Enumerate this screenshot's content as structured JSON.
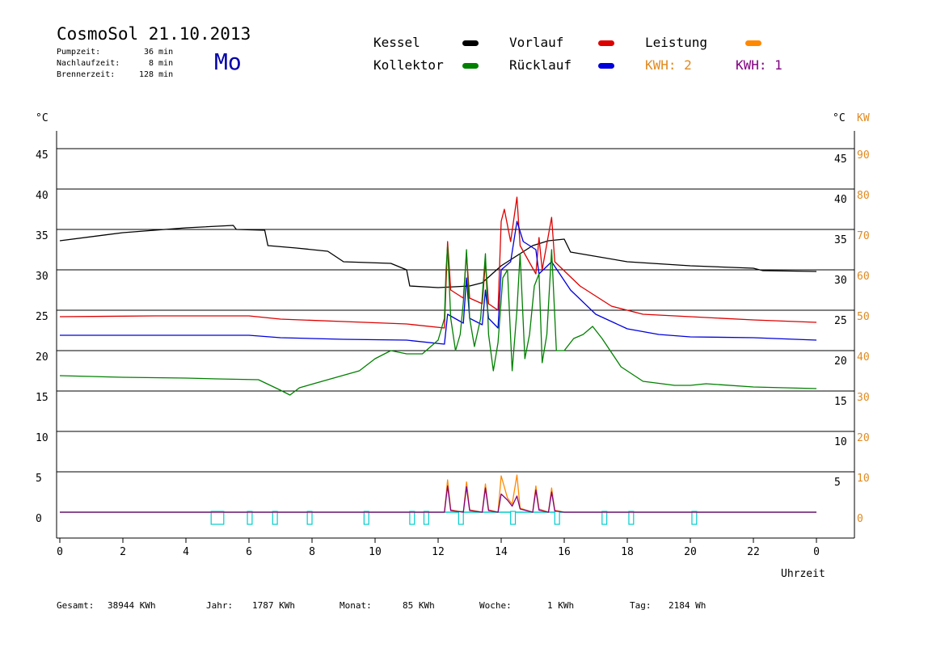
{
  "header": {
    "title": "CosmoSol 21.10.2013",
    "day": "Mo",
    "info": [
      {
        "label": "Pumpzeit:",
        "value": "36 min"
      },
      {
        "label": "Nachlaufzeit:",
        "value": "8 min"
      },
      {
        "label": "Brennerzeit:",
        "value": "128 min"
      }
    ]
  },
  "legend": [
    {
      "name": "Kessel",
      "color": "#000000"
    },
    {
      "name": "Vorlauf",
      "color": "#dd0000"
    },
    {
      "name": "Leistung",
      "color": "#ff8800"
    },
    {
      "name": "Kollektor",
      "color": "#008000"
    },
    {
      "name": "Rücklauf",
      "color": "#0000dd"
    }
  ],
  "kwh": [
    {
      "text": "KWH: 2",
      "color": "#e08a20"
    },
    {
      "text": "KWH: 1",
      "color": "#800080"
    }
  ],
  "axes": {
    "left_unit": "°C",
    "right_unit": "°C",
    "right_unit2": "KW",
    "x_label": "Uhrzeit",
    "x_ticks": [
      "0",
      "2",
      "4",
      "6",
      "8",
      "10",
      "12",
      "14",
      "16",
      "18",
      "20",
      "22",
      "0"
    ],
    "left_ticks": [
      "45",
      "40",
      "35",
      "30",
      "25",
      "20",
      "15",
      "10",
      "5",
      "0"
    ],
    "right_ticks": [
      "45",
      "40",
      "35",
      "30",
      "25",
      "20",
      "15",
      "10",
      "5"
    ],
    "kw_ticks": [
      "90",
      "80",
      "70",
      "60",
      "50",
      "40",
      "30",
      "20",
      "10",
      "0"
    ]
  },
  "totals": [
    {
      "label": "Gesamt:",
      "value": "38944 KWh"
    },
    {
      "label": "Jahr:",
      "value": "1787 KWh"
    },
    {
      "label": "Monat:",
      "value": "85 KWh"
    },
    {
      "label": "Woche:",
      "value": "1 KWh"
    },
    {
      "label": "Tag:",
      "value": "2184 Wh"
    }
  ],
  "chart_data": {
    "type": "line",
    "xlabel": "Uhrzeit",
    "ylabel": "°C",
    "xlim": [
      0,
      24
    ],
    "ylim": [
      0,
      45
    ],
    "y2label": "KW",
    "y2lim": [
      0,
      90
    ],
    "grid": true,
    "series": [
      {
        "name": "Kessel",
        "color": "#000000",
        "points": [
          [
            0,
            33.6
          ],
          [
            2,
            34.6
          ],
          [
            4,
            35.2
          ],
          [
            5.5,
            35.5
          ],
          [
            5.6,
            35.0
          ],
          [
            6.5,
            34.9
          ],
          [
            6.6,
            33.0
          ],
          [
            7.5,
            32.7
          ],
          [
            8.5,
            32.3
          ],
          [
            9.0,
            31.0
          ],
          [
            10.5,
            30.8
          ],
          [
            11.0,
            30.0
          ],
          [
            11.1,
            28.0
          ],
          [
            12.0,
            27.8
          ],
          [
            13.0,
            28.0
          ],
          [
            13.4,
            28.4
          ],
          [
            14.0,
            30.5
          ],
          [
            15.0,
            33.0
          ],
          [
            15.5,
            33.6
          ],
          [
            16.0,
            33.8
          ],
          [
            16.2,
            32.2
          ],
          [
            18,
            31.0
          ],
          [
            20,
            30.5
          ],
          [
            22,
            30.2
          ],
          [
            22.3,
            29.9
          ],
          [
            24,
            29.8
          ]
        ]
      },
      {
        "name": "Vorlauf",
        "color": "#dd0000",
        "points": [
          [
            0,
            24.2
          ],
          [
            3,
            24.3
          ],
          [
            6,
            24.3
          ],
          [
            7,
            23.9
          ],
          [
            9,
            23.6
          ],
          [
            11,
            23.3
          ],
          [
            12.2,
            22.8
          ],
          [
            12.3,
            33.5
          ],
          [
            12.4,
            27.5
          ],
          [
            12.8,
            26.5
          ],
          [
            12.9,
            32.0
          ],
          [
            13.0,
            26.5
          ],
          [
            13.4,
            25.8
          ],
          [
            13.5,
            31.0
          ],
          [
            13.6,
            25.8
          ],
          [
            13.9,
            25.0
          ],
          [
            14.0,
            36.0
          ],
          [
            14.1,
            37.5
          ],
          [
            14.3,
            33.5
          ],
          [
            14.5,
            39.0
          ],
          [
            14.6,
            33.0
          ],
          [
            15.1,
            29.5
          ],
          [
            15.2,
            34.0
          ],
          [
            15.3,
            30.0
          ],
          [
            15.6,
            36.5
          ],
          [
            15.7,
            31.0
          ],
          [
            16.5,
            28.0
          ],
          [
            17.5,
            25.5
          ],
          [
            18.5,
            24.5
          ],
          [
            20,
            24.2
          ],
          [
            22,
            23.8
          ],
          [
            24,
            23.5
          ]
        ]
      },
      {
        "name": "Rücklauf",
        "color": "#0000dd",
        "points": [
          [
            0,
            21.9
          ],
          [
            3,
            21.9
          ],
          [
            6,
            21.9
          ],
          [
            7,
            21.6
          ],
          [
            9,
            21.4
          ],
          [
            11,
            21.3
          ],
          [
            12.2,
            20.8
          ],
          [
            12.3,
            24.5
          ],
          [
            12.8,
            23.4
          ],
          [
            12.9,
            29.0
          ],
          [
            13.0,
            24.0
          ],
          [
            13.4,
            23.2
          ],
          [
            13.5,
            27.5
          ],
          [
            13.6,
            24.0
          ],
          [
            13.9,
            22.8
          ],
          [
            14.0,
            30.0
          ],
          [
            14.3,
            31.0
          ],
          [
            14.5,
            36.0
          ],
          [
            14.7,
            33.5
          ],
          [
            15.1,
            32.5
          ],
          [
            15.2,
            29.5
          ],
          [
            15.6,
            31.0
          ],
          [
            16.2,
            27.5
          ],
          [
            17.0,
            24.5
          ],
          [
            18.0,
            22.7
          ],
          [
            19,
            22.0
          ],
          [
            20,
            21.7
          ],
          [
            22,
            21.6
          ],
          [
            24,
            21.3
          ]
        ]
      },
      {
        "name": "Kollektor",
        "color": "#008000",
        "points": [
          [
            0,
            16.9
          ],
          [
            2,
            16.7
          ],
          [
            4,
            16.6
          ],
          [
            5,
            16.5
          ],
          [
            6.3,
            16.4
          ],
          [
            7.0,
            15.1
          ],
          [
            7.3,
            14.5
          ],
          [
            7.6,
            15.4
          ],
          [
            8.5,
            16.4
          ],
          [
            9.5,
            17.5
          ],
          [
            10.0,
            19.0
          ],
          [
            10.5,
            20.0
          ],
          [
            11.0,
            19.6
          ],
          [
            11.5,
            19.6
          ],
          [
            12.0,
            21.3
          ],
          [
            12.2,
            24.0
          ],
          [
            12.25,
            30.0
          ],
          [
            12.3,
            33.0
          ],
          [
            12.4,
            24.0
          ],
          [
            12.55,
            20.0
          ],
          [
            12.7,
            22.0
          ],
          [
            12.8,
            26.0
          ],
          [
            12.9,
            32.5
          ],
          [
            13.0,
            24.0
          ],
          [
            13.15,
            20.5
          ],
          [
            13.35,
            24.0
          ],
          [
            13.5,
            32.0
          ],
          [
            13.6,
            22.0
          ],
          [
            13.75,
            17.5
          ],
          [
            13.9,
            21.0
          ],
          [
            14.05,
            29.0
          ],
          [
            14.2,
            30.0
          ],
          [
            14.35,
            17.5
          ],
          [
            14.5,
            25.0
          ],
          [
            14.6,
            32.0
          ],
          [
            14.75,
            19.0
          ],
          [
            14.9,
            22.0
          ],
          [
            15.05,
            28.0
          ],
          [
            15.2,
            29.5
          ],
          [
            15.3,
            18.5
          ],
          [
            15.45,
            22.0
          ],
          [
            15.6,
            32.5
          ],
          [
            15.75,
            20.0
          ],
          [
            16.0,
            20.0
          ],
          [
            16.3,
            21.5
          ],
          [
            16.6,
            22.0
          ],
          [
            16.9,
            23.0
          ],
          [
            17.2,
            21.5
          ],
          [
            17.8,
            18.0
          ],
          [
            18.5,
            16.2
          ],
          [
            19.5,
            15.7
          ],
          [
            20,
            15.7
          ],
          [
            20.5,
            15.9
          ],
          [
            22,
            15.5
          ],
          [
            24,
            15.3
          ]
        ]
      },
      {
        "name": "Leistung",
        "color": "#ff8800",
        "axis": "y2",
        "points": [
          [
            0,
            0
          ],
          [
            12.2,
            0
          ],
          [
            12.3,
            8.0
          ],
          [
            12.4,
            0.6
          ],
          [
            12.8,
            0
          ],
          [
            12.9,
            7.5
          ],
          [
            13.0,
            0.6
          ],
          [
            13.4,
            0
          ],
          [
            13.5,
            7.0
          ],
          [
            13.6,
            0.6
          ],
          [
            13.9,
            0
          ],
          [
            14.0,
            9.0
          ],
          [
            14.2,
            3.5
          ],
          [
            14.35,
            2.0
          ],
          [
            14.5,
            9.2
          ],
          [
            14.6,
            1.0
          ],
          [
            15.0,
            0
          ],
          [
            15.1,
            6.5
          ],
          [
            15.2,
            0.8
          ],
          [
            15.5,
            0
          ],
          [
            15.6,
            6.0
          ],
          [
            15.7,
            0.5
          ],
          [
            16.0,
            0
          ],
          [
            24,
            0
          ]
        ]
      },
      {
        "name": "KWH: 1",
        "color": "#800080",
        "axis": "y2",
        "points": [
          [
            0,
            0
          ],
          [
            12.2,
            0
          ],
          [
            12.3,
            6.5
          ],
          [
            12.4,
            0.4
          ],
          [
            12.8,
            0
          ],
          [
            12.9,
            6.3
          ],
          [
            13.0,
            0.4
          ],
          [
            13.4,
            0
          ],
          [
            13.5,
            6.0
          ],
          [
            13.6,
            0.4
          ],
          [
            13.9,
            0
          ],
          [
            14.0,
            4.5
          ],
          [
            14.2,
            3.0
          ],
          [
            14.35,
            1.5
          ],
          [
            14.5,
            4.0
          ],
          [
            14.6,
            0.8
          ],
          [
            15.0,
            0
          ],
          [
            15.1,
            5.5
          ],
          [
            15.2,
            0.5
          ],
          [
            15.5,
            0
          ],
          [
            15.6,
            5.0
          ],
          [
            15.7,
            0.3
          ],
          [
            16.0,
            0
          ],
          [
            24,
            0
          ]
        ]
      }
    ],
    "pump_events": [
      {
        "start": 4.8,
        "end": 5.2
      },
      {
        "start": 5.95,
        "end": 6.1
      },
      {
        "start": 6.75,
        "end": 6.9
      },
      {
        "start": 7.85,
        "end": 8.0
      },
      {
        "start": 9.65,
        "end": 9.8
      },
      {
        "start": 11.1,
        "end": 11.25
      },
      {
        "start": 11.55,
        "end": 11.7
      },
      {
        "start": 12.65,
        "end": 12.8
      },
      {
        "start": 14.3,
        "end": 14.45
      },
      {
        "start": 15.7,
        "end": 15.85
      },
      {
        "start": 17.2,
        "end": 17.35
      },
      {
        "start": 18.05,
        "end": 18.2
      },
      {
        "start": 20.05,
        "end": 20.2
      }
    ]
  }
}
